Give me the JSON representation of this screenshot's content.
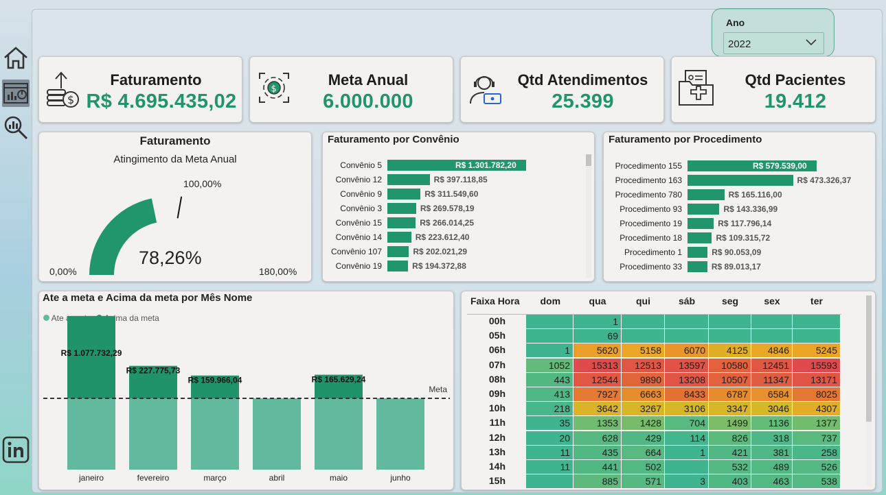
{
  "nav": {
    "items": [
      "home-icon",
      "dashboard-icon",
      "analytics-icon"
    ],
    "footer": "linkedin-icon"
  },
  "filter": {
    "label": "Ano",
    "value": "2022"
  },
  "kpis": [
    {
      "title": "Faturamento",
      "value": "R$ 4.695.435,02"
    },
    {
      "title": "Meta Anual",
      "value": "6.000.000"
    },
    {
      "title": "Qtd Atendimentos",
      "value": "25.399"
    },
    {
      "title": "Qtd Pacientes",
      "value": "19.412"
    }
  ],
  "gauge": {
    "title": "Faturamento",
    "subtitle": "Atingimento da Meta Anual",
    "value_label": "78,26%",
    "min_label": "0,00%",
    "max_label": "180,00%",
    "target_label": "100,00%",
    "value": 78.26,
    "min": 0,
    "max": 180,
    "target": 100
  },
  "convenio": {
    "title": "Faturamento por Convênio",
    "rows": [
      {
        "label": "Convênio 5",
        "value": 1301782.2,
        "text": "R$ 1.301.782,20"
      },
      {
        "label": "Convênio 12",
        "value": 397118.85,
        "text": "R$ 397.118,85"
      },
      {
        "label": "Convênio 9",
        "value": 311549.6,
        "text": "R$ 311.549,60"
      },
      {
        "label": "Convênio 3",
        "value": 269578.19,
        "text": "R$ 269.578,19"
      },
      {
        "label": "Convênio 15",
        "value": 266014.25,
        "text": "R$ 266.014,25"
      },
      {
        "label": "Convênio 14",
        "value": 223612.4,
        "text": "R$ 223.612,40"
      },
      {
        "label": "Convênio 107",
        "value": 202021.29,
        "text": "R$ 202.021,29"
      },
      {
        "label": "Convênio 19",
        "value": 194372.88,
        "text": "R$ 194.372,88"
      }
    ]
  },
  "procedimento": {
    "title": "Faturamento por Procedimento",
    "rows": [
      {
        "label": "Procedimento 155",
        "value": 579539.0,
        "text": "R$ 579.539,00"
      },
      {
        "label": "Procedimento 163",
        "value": 473326.37,
        "text": "R$ 473.326,37"
      },
      {
        "label": "Procedimento 780",
        "value": 165116.0,
        "text": "R$ 165.116,00"
      },
      {
        "label": "Procedimento 93",
        "value": 143336.99,
        "text": "R$ 143.336,99"
      },
      {
        "label": "Procedimento 19",
        "value": 117796.14,
        "text": "R$ 117.796,14"
      },
      {
        "label": "Procedimento 18",
        "value": 109315.72,
        "text": "R$ 109.315,72"
      },
      {
        "label": "Procedimento 1",
        "value": 90053.09,
        "text": "R$ 90.053,09"
      },
      {
        "label": "Procedimento 33",
        "value": 89013.17,
        "text": "R$ 89.013,17"
      }
    ]
  },
  "chart_data": {
    "type": "bar",
    "title": "Ate a meta e Acima da meta por Mês Nome",
    "legend": [
      "Ate a meta",
      "Acima da meta"
    ],
    "categories": [
      "janeiro",
      "fevereiro",
      "março",
      "abril",
      "maio",
      "junho"
    ],
    "series": [
      {
        "name": "Ate a meta",
        "values": [
          500000,
          500000,
          500000,
          500000,
          500000,
          500000
        ]
      },
      {
        "name": "Acima da meta",
        "values": [
          577732.29,
          227775.73,
          159966.04,
          0,
          165629.24,
          0
        ]
      }
    ],
    "data_labels": [
      "R$ 1.077.732,29",
      "R$ 227.775,73",
      "R$ 159.966,04",
      "",
      "R$ 165.629,24",
      ""
    ],
    "reference_line": {
      "label": "Meta",
      "value": 500000
    },
    "ylim": [
      0,
      1100000
    ],
    "legend_position": "top-left",
    "colors": {
      "ate": "#63b8a0",
      "acima": "#21936b"
    }
  },
  "heatmap": {
    "corner": "Faixa Hora",
    "columns": [
      "dom",
      "qua",
      "qui",
      "sáb",
      "seg",
      "sex",
      "ter"
    ],
    "rows": [
      {
        "h": "00h",
        "v": [
          null,
          1,
          null,
          null,
          null,
          null,
          null
        ]
      },
      {
        "h": "05h",
        "v": [
          null,
          69,
          null,
          null,
          null,
          null,
          null
        ]
      },
      {
        "h": "06h",
        "v": [
          1,
          5620,
          5158,
          6070,
          4125,
          4846,
          5245
        ]
      },
      {
        "h": "07h",
        "v": [
          1052,
          15313,
          12513,
          13597,
          10580,
          12451,
          15593
        ]
      },
      {
        "h": "08h",
        "v": [
          443,
          12544,
          9890,
          13208,
          10507,
          11347,
          13171
        ]
      },
      {
        "h": "09h",
        "v": [
          413,
          7927,
          6663,
          8433,
          6787,
          6584,
          8025
        ]
      },
      {
        "h": "10h",
        "v": [
          218,
          3642,
          3267,
          3106,
          3347,
          3046,
          4307
        ]
      },
      {
        "h": "11h",
        "v": [
          35,
          1353,
          1428,
          704,
          1499,
          1136,
          1377
        ]
      },
      {
        "h": "12h",
        "v": [
          20,
          628,
          429,
          114,
          826,
          318,
          737
        ]
      },
      {
        "h": "13h",
        "v": [
          11,
          435,
          664,
          1,
          421,
          381,
          258
        ]
      },
      {
        "h": "14h",
        "v": [
          11,
          441,
          502,
          null,
          532,
          489,
          526
        ]
      },
      {
        "h": "15h",
        "v": [
          null,
          885,
          571,
          3,
          403,
          463,
          538
        ]
      }
    ]
  }
}
